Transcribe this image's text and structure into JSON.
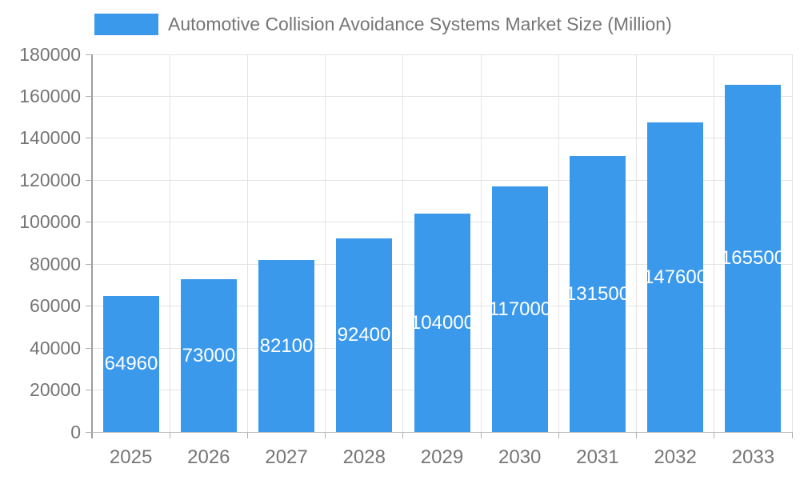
{
  "legend": {
    "label": "Automotive Collision Avoidance Systems Market Size (Million)",
    "swatch_color": "#3b99ec"
  },
  "chart_data": {
    "type": "bar",
    "title": "Automotive Collision Avoidance Systems Market Size (Million)",
    "categories": [
      "2025",
      "2026",
      "2027",
      "2028",
      "2029",
      "2030",
      "2031",
      "2032",
      "2033"
    ],
    "values": [
      64960,
      73000,
      82100,
      92400,
      104000,
      117000,
      131500,
      147600,
      165500
    ],
    "value_labels": [
      "64960",
      "73000",
      "82100",
      "92400",
      "104000",
      "117000",
      "131500",
      "147600",
      "165500"
    ],
    "xlabel": "",
    "ylabel": "",
    "ylim": [
      0,
      180000
    ],
    "ytick_step": 20000,
    "ytick_labels": [
      "0",
      "20000",
      "40000",
      "60000",
      "80000",
      "100000",
      "120000",
      "140000",
      "160000",
      "180000"
    ],
    "grid": true,
    "legend_position": "top-left",
    "colors": {
      "bar": "#3b99ec",
      "value_label": "#ffffff",
      "axis_text": "#757575",
      "gridline": "#e3e3e3",
      "axis_line": "#9e9e9e"
    }
  }
}
